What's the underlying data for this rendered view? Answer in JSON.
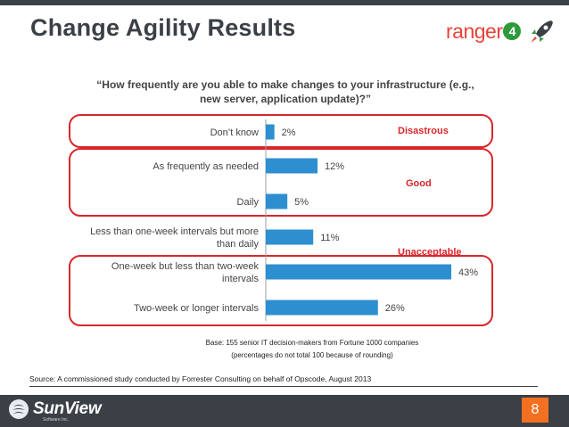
{
  "slide": {
    "title": "Change Agility Results",
    "page_number": "8"
  },
  "logos": {
    "ranger_text": "ranger",
    "ranger_number": "4",
    "sunview_text": "SunView",
    "sunview_sub": "Software Inc."
  },
  "chart_data": {
    "type": "bar",
    "orientation": "horizontal",
    "title": "“How frequently are you able to make changes to your infrastructure (e.g., new server, application update)?”",
    "title_lines": [
      "“How frequently are you able to make changes to your infrastructure (e.g.,",
      "new server, application update)?”"
    ],
    "categories": [
      [
        "Don’t know"
      ],
      [
        "As frequently as needed"
      ],
      [
        "Daily"
      ],
      [
        "Less than one-week intervals but more",
        "than daily"
      ],
      [
        "One-week but less than two-week",
        "intervals"
      ],
      [
        "Two-week or longer intervals"
      ]
    ],
    "values": [
      2,
      12,
      5,
      11,
      43,
      26
    ],
    "value_labels": [
      "2%",
      "12%",
      "5%",
      "11%",
      "43%",
      "26%"
    ],
    "xlim": [
      0,
      43
    ],
    "bar_color": "#2e8fd0",
    "groups": [
      {
        "label": "Disastrous",
        "rows": [
          0
        ]
      },
      {
        "label": "Good",
        "rows": [
          1,
          2
        ]
      },
      {
        "label": "Unacceptable",
        "rows": [
          4,
          5
        ]
      }
    ],
    "group_color": "#d9262c"
  },
  "notes": {
    "base": "Base: 155 senior IT decision-makers from Fortune 1000 companies",
    "rounding": "(percentages do not total 100 because of rounding)",
    "source": "Source: A commissioned study conducted by Forrester Consulting on behalf of Opscode, August 2013"
  }
}
